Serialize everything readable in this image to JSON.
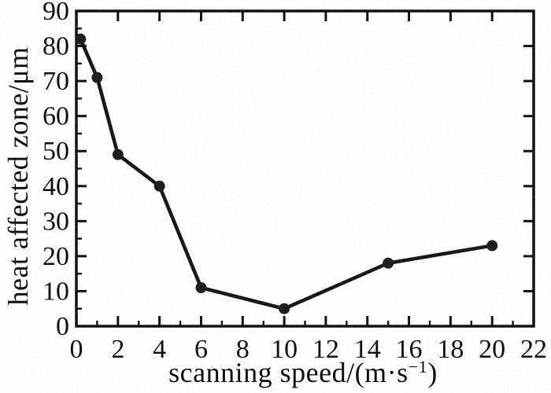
{
  "chart_data": {
    "type": "line",
    "title": "",
    "xlabel": "scanning speed/(m·s⁻¹)",
    "xlabel_parts": {
      "pre": "scanning speed/(m·s",
      "sup": "−1",
      "post": ")"
    },
    "ylabel": "heat affected zone/μm",
    "series": [
      {
        "name": "heat affected zone",
        "x": [
          0.2,
          1,
          2,
          4,
          6,
          10,
          15,
          20
        ],
        "y": [
          82,
          71,
          49,
          40,
          11,
          5,
          18,
          23
        ]
      }
    ],
    "xlim": [
      0,
      22
    ],
    "ylim": [
      0,
      90
    ],
    "x_major_ticks": [
      0,
      2,
      4,
      6,
      8,
      10,
      12,
      14,
      16,
      18,
      20,
      22
    ],
    "x_minor_ticks": [
      1,
      3,
      5,
      7,
      9,
      11,
      13,
      15,
      17,
      19,
      21
    ],
    "x_top_ticks": [
      2,
      4,
      6,
      8,
      10,
      12,
      14,
      16,
      18,
      20
    ],
    "y_major_ticks": [
      0,
      10,
      20,
      30,
      40,
      50,
      60,
      70,
      80,
      90
    ],
    "y_minor_ticks": [
      5,
      15,
      25,
      35,
      45,
      55,
      65,
      75,
      85
    ],
    "y_right_ticks": [
      10,
      20,
      30,
      40,
      50,
      60,
      70,
      80
    ],
    "grid": false,
    "legend": null,
    "marker": "filled-circle",
    "line_color": "#161616",
    "marker_color": "#1c1c1c",
    "frame_color": "#101010",
    "text_color": "#0d0d0d",
    "background": "#ffffff"
  }
}
